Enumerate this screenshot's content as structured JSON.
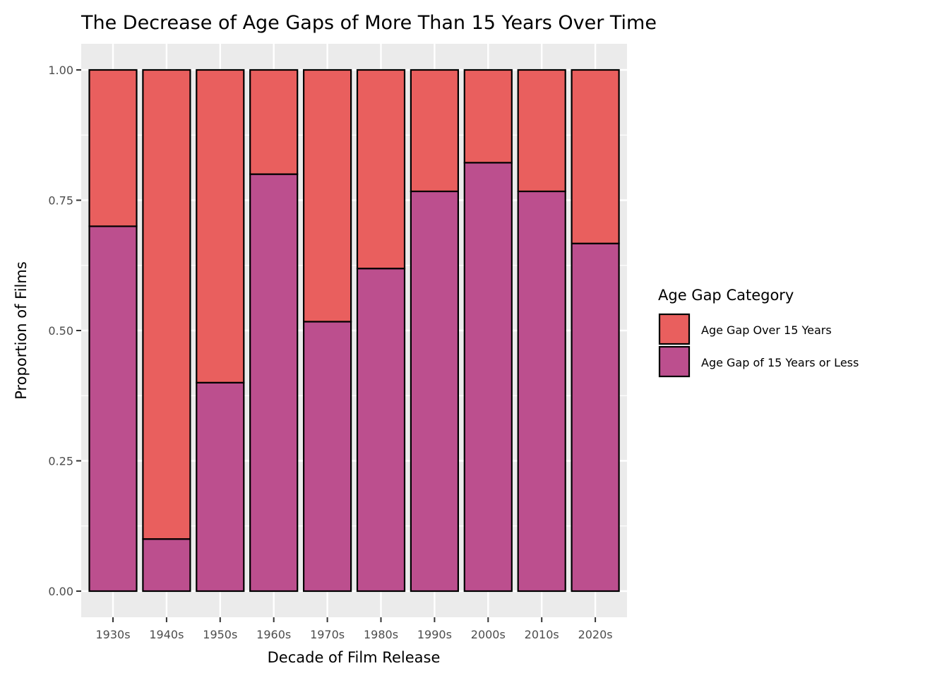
{
  "chart_data": {
    "type": "bar",
    "stacked": true,
    "title": "The Decrease of Age Gaps of More Than 15 Years Over Time",
    "xlabel": "Decade of Film Release",
    "ylabel": "Proportion of Films",
    "ylim": [
      0,
      1
    ],
    "yticks": [
      "0.00",
      "0.25",
      "0.50",
      "0.75",
      "1.00"
    ],
    "grid": true,
    "categories": [
      "1930s",
      "1940s",
      "1950s",
      "1960s",
      "1970s",
      "1980s",
      "1990s",
      "2000s",
      "2010s",
      "2020s"
    ],
    "series": [
      {
        "name": "Age Gap of 15 Years or Less",
        "color": "#bc4f8e",
        "values": [
          0.7,
          0.1,
          0.4,
          0.8,
          0.517,
          0.619,
          0.767,
          0.822,
          0.767,
          0.667
        ]
      },
      {
        "name": "Age Gap Over 15 Years",
        "color": "#e95f5e",
        "values": [
          0.3,
          0.9,
          0.6,
          0.2,
          0.483,
          0.381,
          0.233,
          0.178,
          0.233,
          0.333
        ]
      }
    ],
    "legend": {
      "title": "Age Gap Category",
      "position": "right",
      "entries": [
        "Age Gap Over 15 Years",
        "Age Gap of 15 Years or Less"
      ]
    },
    "panel_background": "#ebebeb",
    "gridline_color": "#ffffff"
  }
}
